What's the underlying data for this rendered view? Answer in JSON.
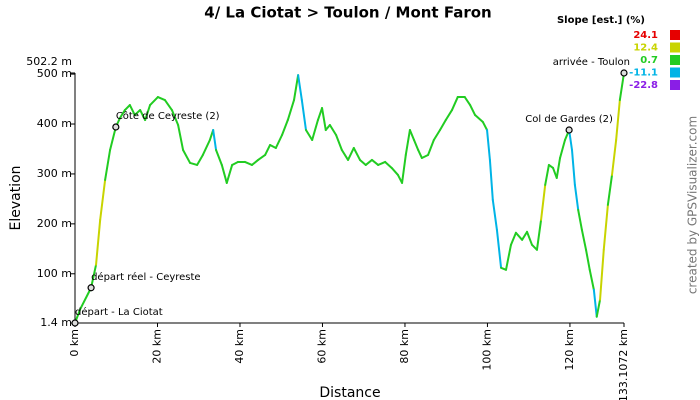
{
  "chart_data": {
    "type": "line",
    "title": "4/ La Ciotat > Toulon / Mont Faron",
    "x_label": "Distance",
    "y_label": "Elevation",
    "credit": "created by GPSVisualizer.com",
    "xlim": [
      0,
      133.1072
    ],
    "ylim": [
      1.4,
      502.2
    ],
    "xticks": [
      {
        "value": 0,
        "label": "0 km"
      },
      {
        "value": 20,
        "label": "20 km"
      },
      {
        "value": 40,
        "label": "40 km"
      },
      {
        "value": 60,
        "label": "60 km"
      },
      {
        "value": 80,
        "label": "80 km"
      },
      {
        "value": 100,
        "label": "100 km"
      },
      {
        "value": 120,
        "label": "120 km"
      },
      {
        "value": 133.1072,
        "label": "133.1072 km"
      }
    ],
    "yticks": [
      {
        "value": 1.4,
        "label": "1.4 m"
      },
      {
        "value": 100,
        "label": "100 m"
      },
      {
        "value": 200,
        "label": "200 m"
      },
      {
        "value": 300,
        "label": "300 m"
      },
      {
        "value": 400,
        "label": "400 m"
      },
      {
        "value": 500,
        "label": "500 m"
      },
      {
        "value": 502.2,
        "label": "502.2 m"
      }
    ],
    "slope_legend": {
      "title": "Slope [est.] (%)",
      "items": [
        {
          "value": 24.1,
          "color": "#e60000"
        },
        {
          "value": 12.4,
          "color": "#c8d400"
        },
        {
          "value": 0.7,
          "color": "#22cc22"
        },
        {
          "value": -11.1,
          "color": "#00b4e6"
        },
        {
          "value": -22.8,
          "color": "#8a1ee6"
        }
      ]
    },
    "x": [
      0,
      1.2,
      3.9,
      5.1,
      6.1,
      7.3,
      8.5,
      9.9,
      10.9,
      12.1,
      13.3,
      14.5,
      15.8,
      17,
      18.2,
      20.1,
      21.8,
      23.5,
      25,
      26.2,
      27.9,
      29.6,
      31,
      32.7,
      33.5,
      34.2,
      35.6,
      36.8,
      38.1,
      39.5,
      41.2,
      42.9,
      44.4,
      46.1,
      47.3,
      48.7,
      50.2,
      51.6,
      53.1,
      54.1,
      55,
      56,
      57.5,
      58.9,
      59.9,
      60.8,
      61.8,
      63.3,
      64.7,
      66.2,
      67.6,
      69.1,
      70.5,
      72,
      73.5,
      75.2,
      76.8,
      78.3,
      79.3,
      80.2,
      81.2,
      82.2,
      83.2,
      84.1,
      85.6,
      87,
      88.5,
      89.9,
      91.4,
      92.8,
      94.5,
      95.8,
      97,
      98.9,
      99.9,
      100.6,
      101.3,
      102.3,
      103.3,
      104.5,
      105.7,
      106.9,
      108.4,
      109.6,
      110.8,
      112,
      113,
      114,
      114.9,
      115.9,
      116.8,
      117.6,
      118.8,
      119.8,
      120.5,
      121.2,
      122,
      122.9,
      123.9,
      124.8,
      125.8,
      126.5,
      127.3,
      128.2,
      129.2,
      130.2,
      131.2,
      132.1,
      133.1072
    ],
    "series": [
      {
        "values": [
          1.4,
          28,
          72,
          118,
          208,
          288,
          348,
          394,
          412,
          428,
          438,
          418,
          428,
          408,
          438,
          454,
          448,
          428,
          398,
          348,
          322,
          318,
          338,
          368,
          388,
          348,
          318,
          282,
          318,
          324,
          324,
          318,
          328,
          338,
          358,
          352,
          378,
          408,
          448,
          498,
          448,
          388,
          368,
          408,
          432,
          388,
          398,
          378,
          348,
          328,
          352,
          328,
          318,
          328,
          318,
          324,
          312,
          298,
          282,
          338,
          388,
          368,
          348,
          332,
          338,
          368,
          388,
          408,
          428,
          454,
          454,
          438,
          418,
          404,
          388,
          328,
          248,
          188,
          112,
          108,
          158,
          182,
          168,
          184,
          158,
          148,
          208,
          278,
          318,
          312,
          292,
          332,
          368,
          388,
          348,
          278,
          228,
          188,
          148,
          108,
          68,
          14,
          48,
          148,
          238,
          298,
          368,
          448,
          502.2
        ]
      }
    ],
    "waypoints": [
      {
        "name": "départ - La Ciotat",
        "x": 0,
        "y": 1.4
      },
      {
        "name": "départ réel - Ceyreste",
        "x": 3.9,
        "y": 72
      },
      {
        "name": "Côte de Ceyreste (2)",
        "x": 9.9,
        "y": 394
      },
      {
        "name": "Col de Gardes (2)",
        "x": 119.8,
        "y": 388
      },
      {
        "name": "arrivée - Toulon",
        "x": 133.1072,
        "y": 502.2
      }
    ]
  }
}
